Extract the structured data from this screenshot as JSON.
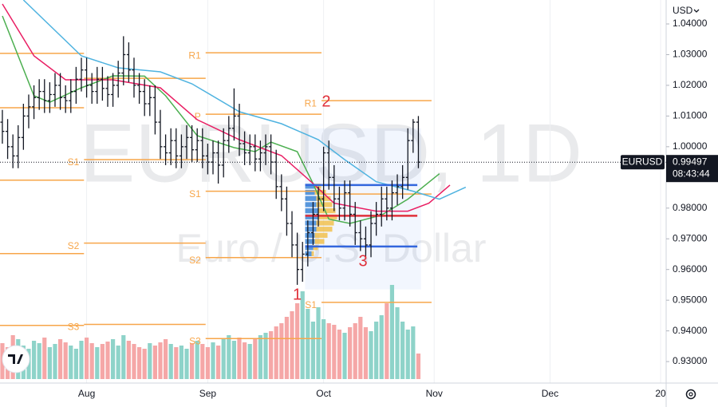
{
  "chart_data": {
    "type": "ohlc",
    "symbol": "EURUSD",
    "watermark": "EURUSD, 1D",
    "description": "Euro / U.S. Dollar",
    "currency": "USD",
    "countdown": "08:43:44",
    "xlim": [
      -0.45,
      126.05
    ],
    "xticks": [
      {
        "value": 16,
        "label": "Aug"
      },
      {
        "value": 39,
        "label": "Sep"
      },
      {
        "value": 61,
        "label": "Oct"
      },
      {
        "value": 82,
        "label": "Nov"
      },
      {
        "value": 104,
        "label": "Dec"
      },
      {
        "value": 125,
        "label": "20"
      }
    ],
    "xgrid": true,
    "ylim": [
      0.923,
      1.0478
    ],
    "yticks": [
      {
        "value": 1.04,
        "label": "1.04000"
      },
      {
        "value": 1.03,
        "label": "1.03000"
      },
      {
        "value": 1.02,
        "label": "1.02000"
      },
      {
        "value": 1.01,
        "label": "1.01000"
      },
      {
        "value": 1.0,
        "label": "1.00000"
      },
      {
        "value": 0.98,
        "label": "0.98000"
      },
      {
        "value": 0.97,
        "label": "0.97000"
      },
      {
        "value": 0.96,
        "label": "0.96000"
      },
      {
        "value": 0.95,
        "label": "0.95000"
      },
      {
        "value": 0.94,
        "label": "0.94000"
      },
      {
        "value": 0.93,
        "label": "0.93000"
      }
    ],
    "color": "#131722",
    "open": [
      1.008,
      1.005,
      1.0,
      0.997,
      1.003,
      1.01,
      1.013,
      1.016,
      1.018,
      1.015,
      1.017,
      1.02,
      1.016,
      1.015,
      1.018,
      1.022,
      1.025,
      1.02,
      1.018,
      1.022,
      1.019,
      1.017,
      1.02,
      1.024,
      1.03,
      1.025,
      1.02,
      1.018,
      1.014,
      1.016,
      1.008,
      1.0,
      0.998,
      1.002,
      0.997,
      1.0,
      1.003,
      0.999,
      1.002,
      0.997,
      0.995,
      0.998,
      0.994,
      1.002,
      1.006,
      1.01,
      1.001,
      0.998,
      1.0,
      0.996,
      0.998,
      1.0,
      0.995,
      0.987,
      0.983,
      0.975,
      0.968,
      0.96,
      0.965,
      0.972,
      0.978,
      0.983,
      0.998,
      0.99,
      0.983,
      0.98,
      0.985,
      0.978,
      0.972,
      0.97,
      0.968,
      0.975,
      0.978,
      0.983,
      0.98,
      0.985,
      0.987,
      0.99,
      1.002,
      1.008
    ],
    "high": [
      1.012,
      1.009,
      1.004,
      1.007,
      1.014,
      1.017,
      1.02,
      1.022,
      1.022,
      1.021,
      1.024,
      1.024,
      1.02,
      1.022,
      1.026,
      1.029,
      1.029,
      1.024,
      1.026,
      1.026,
      1.023,
      1.024,
      1.028,
      1.036,
      1.034,
      1.029,
      1.024,
      1.022,
      1.02,
      1.02,
      1.012,
      1.004,
      1.006,
      1.006,
      1.004,
      1.007,
      1.007,
      1.006,
      1.006,
      1.001,
      1.002,
      1.002,
      1.006,
      1.01,
      1.019,
      1.014,
      1.005,
      1.004,
      1.004,
      1.002,
      1.004,
      1.004,
      0.999,
      0.991,
      0.987,
      0.979,
      0.972,
      0.969,
      0.976,
      0.982,
      0.987,
      1.0,
      1.002,
      0.994,
      0.987,
      0.989,
      0.989,
      0.982,
      0.976,
      0.974,
      0.979,
      0.982,
      0.987,
      0.987,
      0.989,
      0.991,
      0.994,
      1.006,
      1.009,
      1.01
    ],
    "low": [
      1.001,
      0.996,
      0.993,
      0.993,
      0.999,
      1.006,
      1.009,
      1.012,
      1.011,
      1.011,
      1.013,
      1.012,
      1.011,
      1.011,
      1.014,
      1.018,
      1.016,
      1.014,
      1.014,
      1.015,
      1.013,
      1.013,
      1.016,
      1.02,
      1.021,
      1.016,
      1.014,
      1.01,
      1.01,
      1.004,
      0.996,
      0.994,
      0.994,
      0.993,
      0.993,
      0.996,
      0.995,
      0.995,
      0.993,
      0.991,
      0.991,
      0.988,
      0.99,
      0.998,
      1.002,
      0.997,
      0.994,
      0.994,
      0.992,
      0.992,
      0.994,
      0.991,
      0.983,
      0.979,
      0.971,
      0.964,
      0.955,
      0.956,
      0.961,
      0.968,
      0.974,
      0.979,
      0.986,
      0.979,
      0.976,
      0.976,
      0.974,
      0.968,
      0.966,
      0.964,
      0.964,
      0.971,
      0.974,
      0.976,
      0.976,
      0.981,
      0.983,
      0.986,
      0.998,
      0.993
    ],
    "close": [
      1.005,
      1.0,
      0.997,
      1.003,
      1.01,
      1.013,
      1.016,
      1.018,
      1.015,
      1.017,
      1.02,
      1.016,
      1.015,
      1.018,
      1.022,
      1.025,
      1.02,
      1.018,
      1.022,
      1.019,
      1.017,
      1.02,
      1.024,
      1.03,
      1.025,
      1.02,
      1.018,
      1.014,
      1.016,
      1.008,
      1.0,
      0.998,
      1.002,
      0.997,
      1.0,
      1.003,
      0.999,
      1.002,
      0.997,
      0.995,
      0.998,
      0.994,
      1.002,
      1.006,
      1.01,
      1.001,
      0.998,
      1.0,
      0.996,
      0.998,
      1.0,
      0.995,
      0.987,
      0.983,
      0.975,
      0.968,
      0.96,
      0.965,
      0.972,
      0.978,
      0.983,
      0.998,
      0.99,
      0.983,
      0.98,
      0.985,
      0.978,
      0.972,
      0.97,
      0.968,
      0.975,
      0.978,
      0.983,
      0.98,
      0.985,
      0.987,
      0.99,
      1.002,
      1.008,
      0.99497
    ],
    "volume": [
      45,
      40,
      55,
      50,
      42,
      38,
      48,
      45,
      52,
      40,
      44,
      50,
      46,
      42,
      38,
      48,
      52,
      45,
      40,
      44,
      47,
      50,
      42,
      55,
      48,
      44,
      40,
      38,
      45,
      42,
      46,
      50,
      44,
      40,
      42,
      38,
      45,
      48,
      44,
      40,
      46,
      42,
      50,
      55,
      48,
      52,
      46,
      44,
      50,
      55,
      58,
      60,
      66,
      70,
      78,
      85,
      95,
      110,
      88,
      72,
      90,
      75,
      70,
      68,
      62,
      58,
      65,
      70,
      78,
      65,
      60,
      72,
      80,
      95,
      118,
      90,
      72,
      62,
      66,
      32
    ],
    "volume_colors": {
      "up": "#8ed3c9",
      "down": "#f5a7a7"
    },
    "ma": [
      {
        "color": "#4caf50",
        "x": [
          0,
          6,
          9,
          15,
          21,
          27,
          31,
          37,
          44,
          48,
          51,
          56,
          59,
          62,
          66,
          72,
          77,
          83
        ],
        "values": [
          1.0426,
          1.0166,
          1.0145,
          1.0192,
          1.0231,
          1.023,
          1.0166,
          1.0036,
          0.9997,
          0.9984,
          1.0015,
          0.9984,
          0.988,
          0.9764,
          0.975,
          0.9777,
          0.9829,
          0.9912
        ]
      },
      {
        "color": "#e91e63",
        "x": [
          0,
          6,
          12,
          21,
          30,
          37,
          45,
          53,
          59,
          63,
          71,
          77,
          81,
          85
        ],
        "values": [
          1.0465,
          1.0296,
          1.0218,
          1.0218,
          1.0192,
          1.0088,
          1.0023,
          0.9971,
          0.988,
          0.9816,
          0.979,
          0.979,
          0.9816,
          0.9875
        ]
      },
      {
        "color": "#4fb3e0",
        "x": [
          4,
          15,
          22,
          30,
          36,
          45,
          53,
          60,
          65,
          71,
          78,
          83,
          88
        ],
        "values": [
          1.0478,
          1.0296,
          1.0257,
          1.0244,
          1.0205,
          1.0114,
          1.0075,
          1.0023,
          0.9958,
          0.9886,
          0.9855,
          0.9829,
          0.9868
        ]
      }
    ],
    "pivot_color": "#f7a64a",
    "pivots": [
      {
        "label": null,
        "value": 1.0304,
        "start": -0.45,
        "end": 15.5
      },
      {
        "label": null,
        "value": 1.0127,
        "start": -0.45,
        "end": 15.5
      },
      {
        "label": null,
        "value": 0.9891,
        "start": -0.45,
        "end": 15.5
      },
      {
        "label": null,
        "value": 0.9652,
        "start": -0.45,
        "end": 15.5
      },
      {
        "label": null,
        "value": 0.9418,
        "start": -0.45,
        "end": 15.5
      },
      {
        "label": null,
        "value": 1.0223,
        "start": 15.5,
        "end": 38.6
      },
      {
        "label": "S1",
        "value": 0.9958,
        "start": 15.5,
        "end": 38.6
      },
      {
        "label": "S2",
        "value": 0.9686,
        "start": 15.5,
        "end": 38.6
      },
      {
        "label": "S3",
        "value": 0.9421,
        "start": 15.5,
        "end": 38.6
      },
      {
        "label": "R1",
        "value": 1.0306,
        "start": 38.6,
        "end": 60.6
      },
      {
        "label": "P",
        "value": 1.0106,
        "start": 38.6,
        "end": 60.6
      },
      {
        "label": "S1",
        "value": 0.9855,
        "start": 38.6,
        "end": 60.6
      },
      {
        "label": "S2",
        "value": 0.9639,
        "start": 38.6,
        "end": 60.6
      },
      {
        "label": "S3",
        "value": 0.9375,
        "start": 38.6,
        "end": 60.6
      },
      {
        "label": "R1",
        "value": 1.015,
        "start": 60.6,
        "end": 81.5
      },
      {
        "label": null,
        "value": 0.9846,
        "start": 60.6,
        "end": 81.5
      },
      {
        "label": "S1",
        "value": 0.9493,
        "start": 60.6,
        "end": 81.5
      }
    ],
    "profile": {
      "price": [
        0.987,
        0.985,
        0.983,
        0.981,
        0.979,
        0.977,
        0.975,
        0.973,
        0.971,
        0.969,
        0.967,
        0.965
      ],
      "down": [
        12,
        12,
        14,
        14,
        16,
        16,
        14,
        14,
        12,
        12,
        10,
        8
      ],
      "up": [
        8,
        14,
        18,
        20,
        22,
        24,
        22,
        20,
        16,
        12,
        6,
        3
      ],
      "colors": [
        "#3d86d6",
        "#f2c14e"
      ]
    },
    "levels": [
      {
        "value": 0.9875,
        "color": "#3366dd",
        "start": 57.5,
        "end": 78.8
      },
      {
        "value": 0.9775,
        "color": "#e0303a",
        "start": 57.5,
        "end": 78.8
      },
      {
        "value": 0.9675,
        "color": "#3366dd",
        "start": 57.5,
        "end": 78.8
      }
    ],
    "annotations": [
      {
        "text": "1",
        "x": 56,
        "y": 0.9515
      },
      {
        "text": "2",
        "x": 61.5,
        "y": 1.0145
      },
      {
        "text": "3",
        "x": 68.5,
        "y": 0.9625
      }
    ],
    "annotation_color": "#e0303a"
  }
}
